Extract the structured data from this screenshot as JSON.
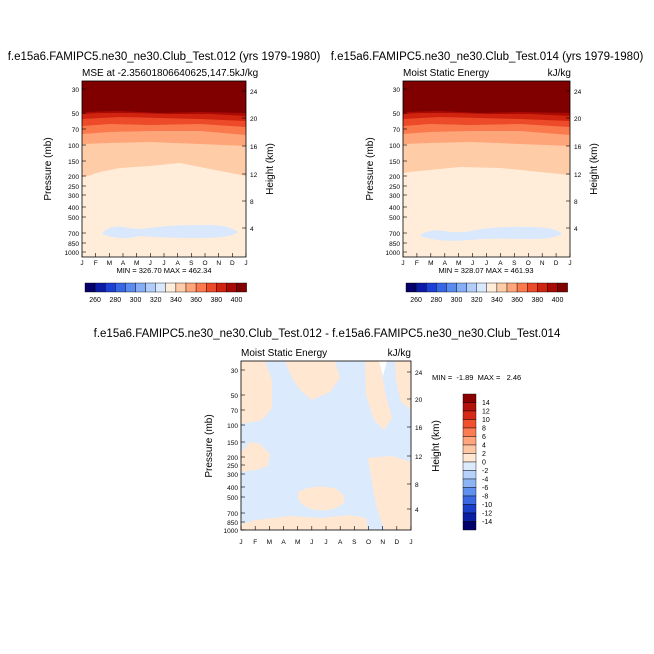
{
  "chart_data": [
    {
      "type": "heatmap",
      "panel": "top-left",
      "title": "f.e15a6.FAMIPC5.ne30_ne30.Club_Test.012 (yrs 1979-1980)",
      "left_label": "MSE at -2.35601806640625,147.5",
      "right_label": "kJ/kg",
      "ylabel": "Pressure (mb)",
      "y2label": "Height (km)",
      "x_ticks": [
        "J",
        "F",
        "M",
        "A",
        "M",
        "J",
        "J",
        "A",
        "S",
        "O",
        "N",
        "D",
        "J"
      ],
      "y_ticks": [
        "30",
        "50",
        "70",
        "100",
        "150",
        "200",
        "250",
        "300",
        "400",
        "500",
        "700",
        "850",
        "1000"
      ],
      "y2_ticks": [
        "24",
        "20",
        "16",
        "12",
        "8",
        "4"
      ],
      "stats": "MIN = 326.70  MAX = 462.34",
      "colorbar_labels": [
        "260",
        "280",
        "300",
        "320",
        "340",
        "360",
        "380",
        "400"
      ],
      "colorbar_colors": [
        "#06006a",
        "#0a1ba6",
        "#1c3fd6",
        "#3766e6",
        "#5a8cf0",
        "#85aef6",
        "#b2cdfa",
        "#d9e8fc",
        "#ffedda",
        "#ffcca8",
        "#ffa57a",
        "#fa7a4e",
        "#ec4a28",
        "#d12410",
        "#a90a04",
        "#800000"
      ]
    },
    {
      "type": "heatmap",
      "panel": "top-right",
      "title": "f.e15a6.FAMIPC5.ne30_ne30.Club_Test.014 (yrs 1979-1980)",
      "left_label": "Moist Static Energy",
      "right_label": "kJ/kg",
      "ylabel": "Pressure (mb)",
      "y2label": "Height (km)",
      "x_ticks": [
        "J",
        "F",
        "M",
        "A",
        "M",
        "J",
        "J",
        "A",
        "S",
        "O",
        "N",
        "D",
        "J"
      ],
      "y_ticks": [
        "30",
        "50",
        "70",
        "100",
        "150",
        "200",
        "250",
        "300",
        "400",
        "500",
        "700",
        "850",
        "1000"
      ],
      "y2_ticks": [
        "24",
        "20",
        "16",
        "12",
        "8",
        "4"
      ],
      "stats": "MIN = 328.07  MAX = 461.93",
      "colorbar_labels": [
        "260",
        "280",
        "300",
        "320",
        "340",
        "360",
        "380",
        "400"
      ],
      "colorbar_colors": [
        "#06006a",
        "#0a1ba6",
        "#1c3fd6",
        "#3766e6",
        "#5a8cf0",
        "#85aef6",
        "#b2cdfa",
        "#d9e8fc",
        "#ffedda",
        "#ffcca8",
        "#ffa57a",
        "#fa7a4e",
        "#ec4a28",
        "#d12410",
        "#a90a04",
        "#800000"
      ]
    },
    {
      "type": "heatmap",
      "panel": "bottom-center",
      "title": "f.e15a6.FAMIPC5.ne30_ne30.Club_Test.012 - f.e15a6.FAMIPC5.ne30_ne30.Club_Test.014",
      "left_label": "Moist Static Energy",
      "right_label": "kJ/kg",
      "ylabel": "Pressure (mb)",
      "y2label": "Height (km)",
      "x_ticks": [
        "J",
        "F",
        "M",
        "A",
        "M",
        "J",
        "J",
        "A",
        "S",
        "O",
        "N",
        "D",
        "J"
      ],
      "y_ticks": [
        "30",
        "50",
        "70",
        "100",
        "150",
        "200",
        "250",
        "300",
        "400",
        "500",
        "700",
        "850",
        "1000"
      ],
      "y2_ticks": [
        "24",
        "20",
        "16",
        "12",
        "8",
        "4"
      ],
      "stats": "MIN =  -1.89  MAX =   2.46",
      "colorbar_labels": [
        "14",
        "12",
        "10",
        "8",
        "6",
        "4",
        "2",
        "0",
        "-2",
        "-4",
        "-6",
        "-8",
        "-10",
        "-12",
        "-14"
      ],
      "colorbar_colors": [
        "#8b0000",
        "#b3120a",
        "#d72a16",
        "#f0502e",
        "#fa7c52",
        "#ffa47c",
        "#ffc6a4",
        "#ffe7d2",
        "#dbeafc",
        "#b6d2fa",
        "#8cb4f4",
        "#6090ee",
        "#3a68e2",
        "#1a40ca",
        "#0a20a2",
        "#00006a"
      ]
    }
  ]
}
